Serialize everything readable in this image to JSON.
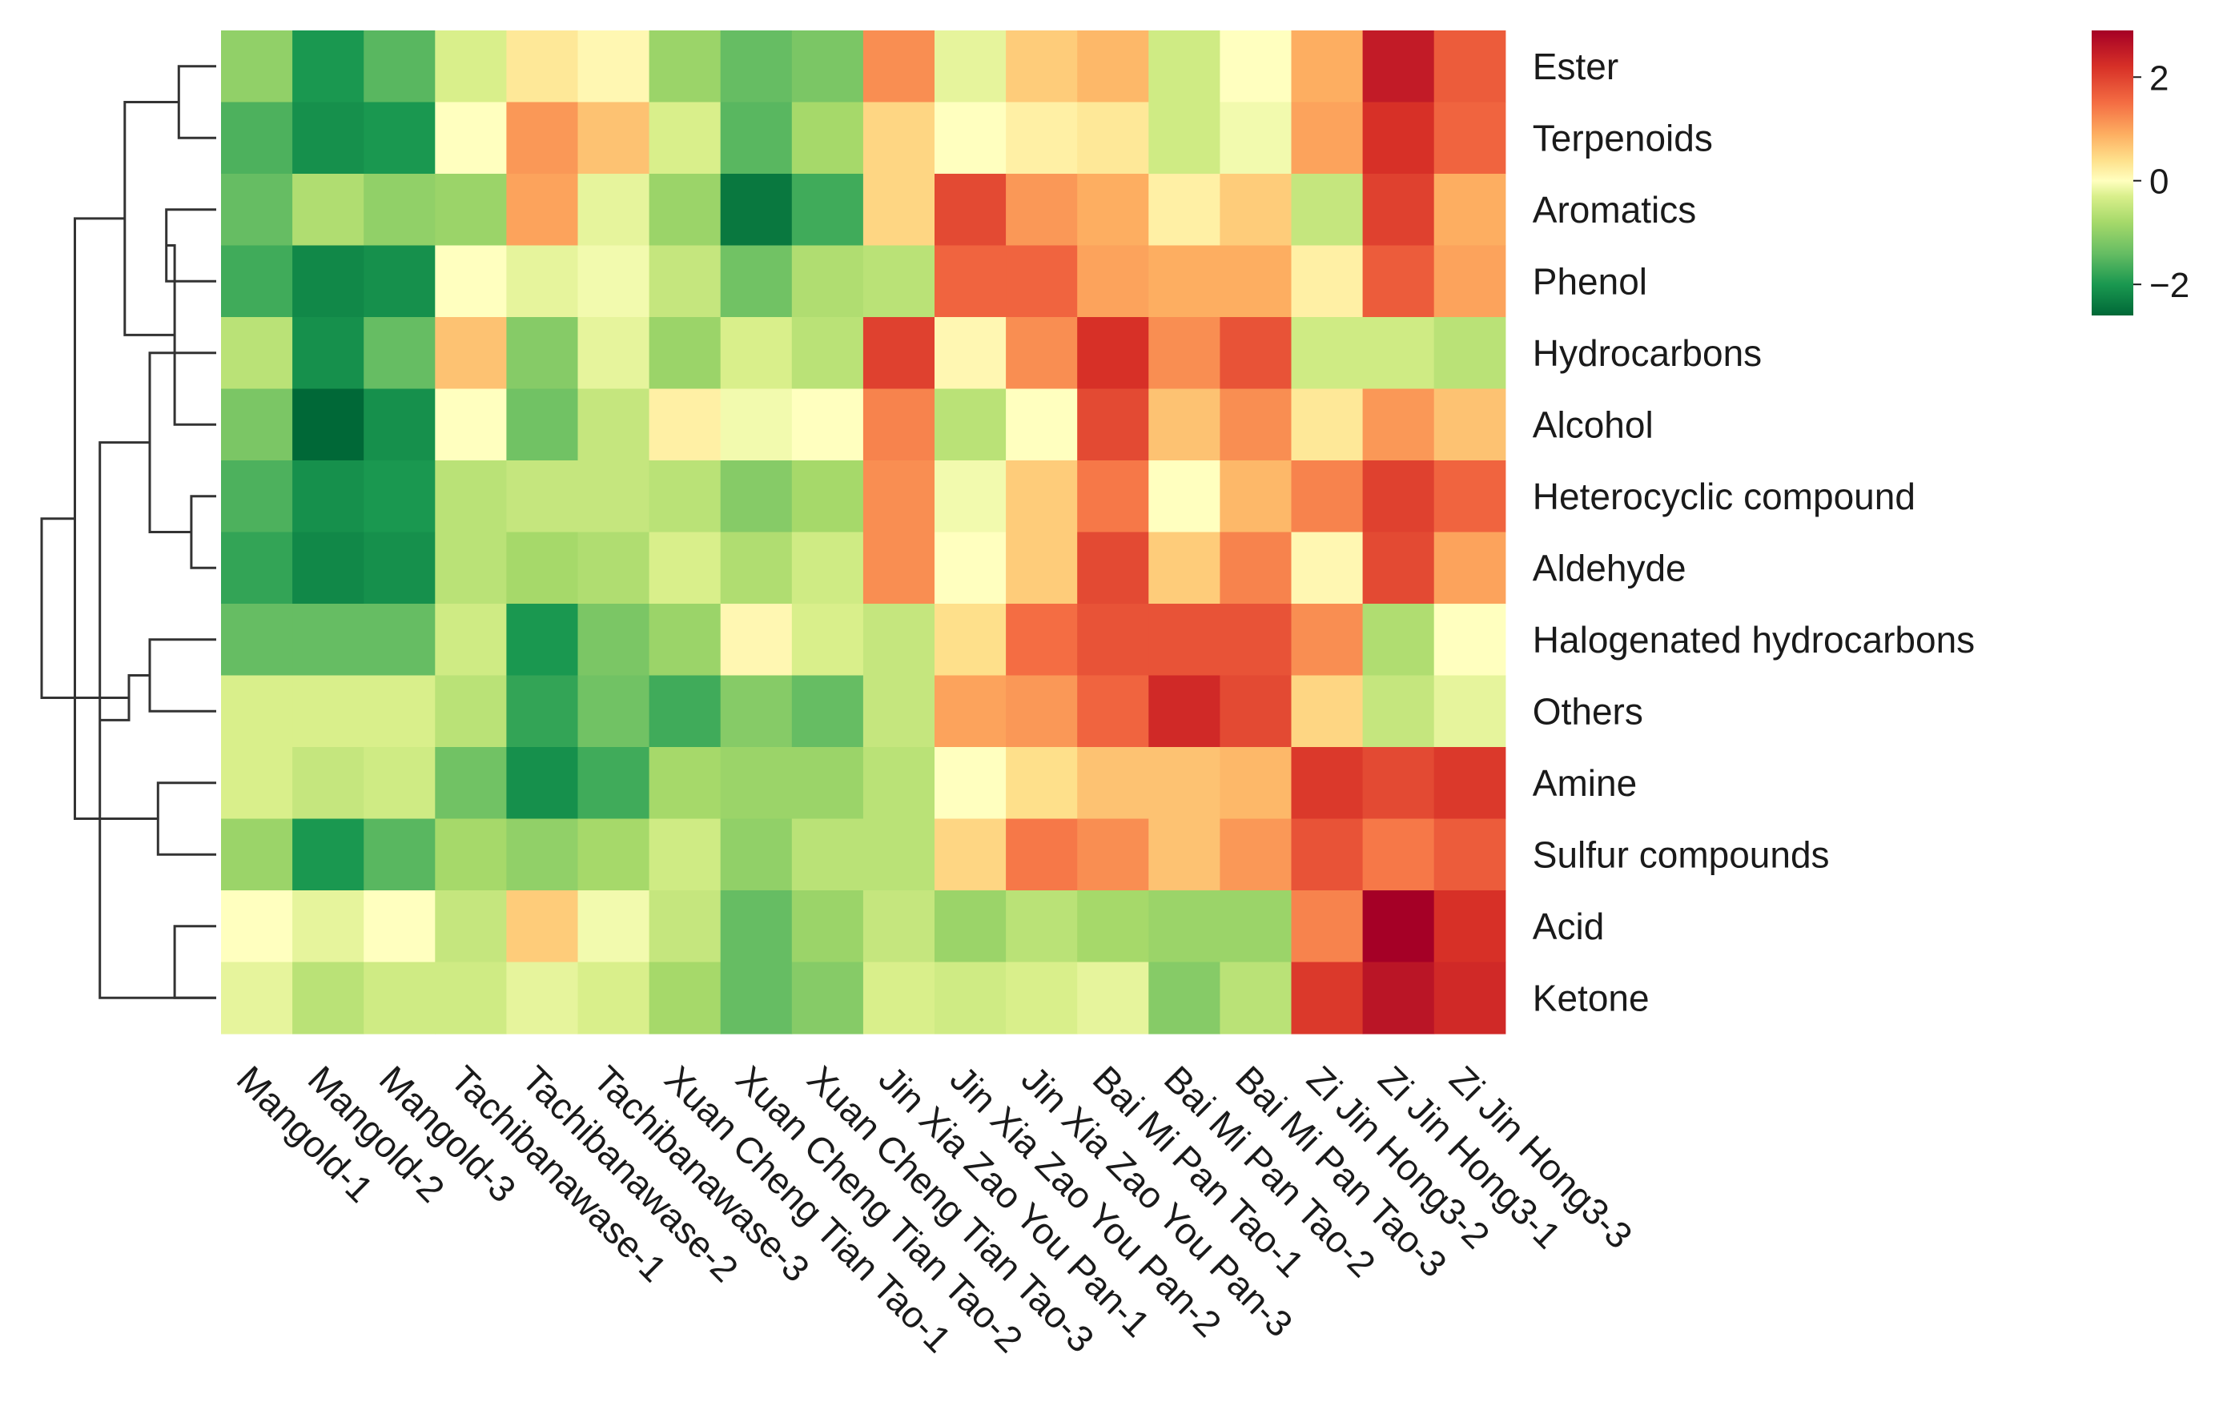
{
  "chart_data": {
    "type": "heatmap",
    "title": "",
    "xlabel": "",
    "ylabel": "",
    "rows": [
      "Ester",
      "Terpenoids",
      "Aromatics",
      "Phenol",
      "Hydrocarbons",
      "Alcohol",
      "Heterocyclic compound",
      "Aldehyde",
      "Halogenated hydrocarbons",
      "Others",
      "Amine",
      "Sulfur compounds",
      "Acid",
      "Ketone"
    ],
    "columns": [
      "Mangold-1",
      "Mangold-2",
      "Mangold-3",
      "Tachibanawase-1",
      "Tachibanawase-2",
      "Tachibanawase-3",
      "Xuan Cheng Tian Tao-1",
      "Xuan Cheng Tian Tao-2",
      "Xuan Cheng Tian Tao-3",
      "Jin Xia Zao You Pan-1",
      "Jin Xia Zao You Pan-2",
      "Jin Xia Zao You Pan-3",
      "Bai Mi Pan Tao-1",
      "Bai Mi Pan Tao-2",
      "Bai Mi Pan Tao-3",
      "Zi Jin Hong3-2",
      "Zi Jin Hong3-1",
      "Zi Jin Hong3-3"
    ],
    "values": [
      [
        -1.0,
        -2.0,
        -1.5,
        -0.3,
        0.3,
        0.1,
        -0.9,
        -1.4,
        -1.2,
        1.2,
        -0.2,
        0.6,
        0.8,
        -0.4,
        0.0,
        0.9,
        2.5,
        1.7
      ],
      [
        -1.6,
        -2.1,
        -2.0,
        0.0,
        1.1,
        0.7,
        -0.3,
        -1.5,
        -0.8,
        0.5,
        0.0,
        0.2,
        0.3,
        -0.4,
        -0.1,
        1.0,
        2.2,
        1.6
      ],
      [
        -1.4,
        -0.7,
        -1.0,
        -0.9,
        1.0,
        -0.2,
        -0.9,
        -2.4,
        -1.7,
        0.5,
        1.9,
        1.1,
        0.9,
        0.2,
        0.6,
        -0.5,
        2.0,
        0.9
      ],
      [
        -1.7,
        -2.2,
        -2.1,
        0.0,
        -0.2,
        -0.1,
        -0.5,
        -1.3,
        -0.7,
        -0.6,
        1.6,
        1.6,
        1.0,
        0.9,
        0.9,
        0.2,
        1.7,
        1.0
      ],
      [
        -0.6,
        -2.1,
        -1.4,
        0.7,
        -1.1,
        -0.2,
        -0.9,
        -0.3,
        -0.6,
        2.0,
        0.1,
        1.2,
        2.2,
        1.2,
        1.8,
        -0.4,
        -0.4,
        -0.6
      ],
      [
        -1.2,
        -2.6,
        -2.1,
        0.0,
        -1.3,
        -0.5,
        0.2,
        -0.1,
        0.0,
        1.3,
        -0.6,
        0.0,
        1.9,
        0.7,
        1.2,
        0.3,
        1.1,
        0.7
      ],
      [
        -1.6,
        -2.1,
        -2.0,
        -0.6,
        -0.5,
        -0.5,
        -0.6,
        -1.1,
        -0.8,
        1.2,
        -0.1,
        0.6,
        1.4,
        0.0,
        0.8,
        1.3,
        2.0,
        1.6
      ],
      [
        -1.8,
        -2.2,
        -2.1,
        -0.6,
        -0.8,
        -0.7,
        -0.3,
        -0.7,
        -0.4,
        1.2,
        0.0,
        0.6,
        1.9,
        0.6,
        1.3,
        0.1,
        1.9,
        1.0
      ],
      [
        -1.4,
        -1.4,
        -1.4,
        -0.4,
        -2.0,
        -1.2,
        -0.9,
        0.1,
        -0.3,
        -0.5,
        0.4,
        1.5,
        1.8,
        1.8,
        1.8,
        1.2,
        -0.7,
        0.0
      ],
      [
        -0.3,
        -0.3,
        -0.3,
        -0.6,
        -1.8,
        -1.3,
        -1.7,
        -1.1,
        -1.4,
        -0.5,
        1.0,
        1.1,
        1.6,
        2.3,
        1.9,
        0.5,
        -0.5,
        -0.2
      ],
      [
        -0.3,
        -0.5,
        -0.4,
        -1.3,
        -2.1,
        -1.7,
        -0.8,
        -0.9,
        -0.9,
        -0.6,
        0.0,
        0.4,
        0.7,
        0.7,
        0.8,
        2.1,
        1.9,
        2.1
      ],
      [
        -0.9,
        -2.0,
        -1.5,
        -0.8,
        -1.0,
        -0.8,
        -0.4,
        -1.0,
        -0.6,
        -0.6,
        0.5,
        1.4,
        1.2,
        0.7,
        1.1,
        1.8,
        1.4,
        1.7
      ],
      [
        0.0,
        -0.2,
        0.0,
        -0.5,
        0.6,
        -0.1,
        -0.5,
        -1.4,
        -0.9,
        -0.5,
        -0.9,
        -0.6,
        -0.8,
        -0.9,
        -0.9,
        1.3,
        2.9,
        2.2
      ],
      [
        -0.2,
        -0.6,
        -0.4,
        -0.4,
        -0.2,
        -0.3,
        -0.8,
        -1.4,
        -1.1,
        -0.3,
        -0.4,
        -0.3,
        -0.2,
        -1.1,
        -0.6,
        2.1,
        2.6,
        2.3
      ]
    ],
    "colorbar": {
      "range": [
        -2.6,
        2.9
      ],
      "ticks": [
        2,
        0,
        -2
      ],
      "tick_labels": [
        "2",
        "0",
        "−2"
      ],
      "colors": [
        "#006837",
        "#1a9850",
        "#66bd63",
        "#a6d96a",
        "#d9ef8b",
        "#ffffbf",
        "#fee08b",
        "#fdae61",
        "#f46d43",
        "#d73027",
        "#a50026"
      ],
      "color_positions": [
        -2.6,
        -2.0,
        -1.4,
        -0.8,
        -0.3,
        0.0,
        0.4,
        0.9,
        1.5,
        2.2,
        2.9
      ]
    },
    "row_dendrogram": {
      "merges": [
        [
          0,
          1,
          0.9
        ],
        [
          2,
          3,
          1.2
        ],
        [
          6,
          7,
          0.6
        ],
        [
          5,
          15,
          1.0
        ],
        [
          4,
          16,
          1.6
        ],
        [
          14,
          17,
          2.2
        ],
        [
          13,
          18,
          2.8
        ],
        [
          8,
          9,
          1.6
        ],
        [
          10,
          11,
          1.4
        ],
        [
          20,
          21,
          2.1
        ],
        [
          19,
          22,
          3.4
        ],
        [
          12,
          13,
          1.0
        ],
        [
          23,
          24,
          4.2
        ]
      ]
    },
    "line_color": "#333333"
  }
}
